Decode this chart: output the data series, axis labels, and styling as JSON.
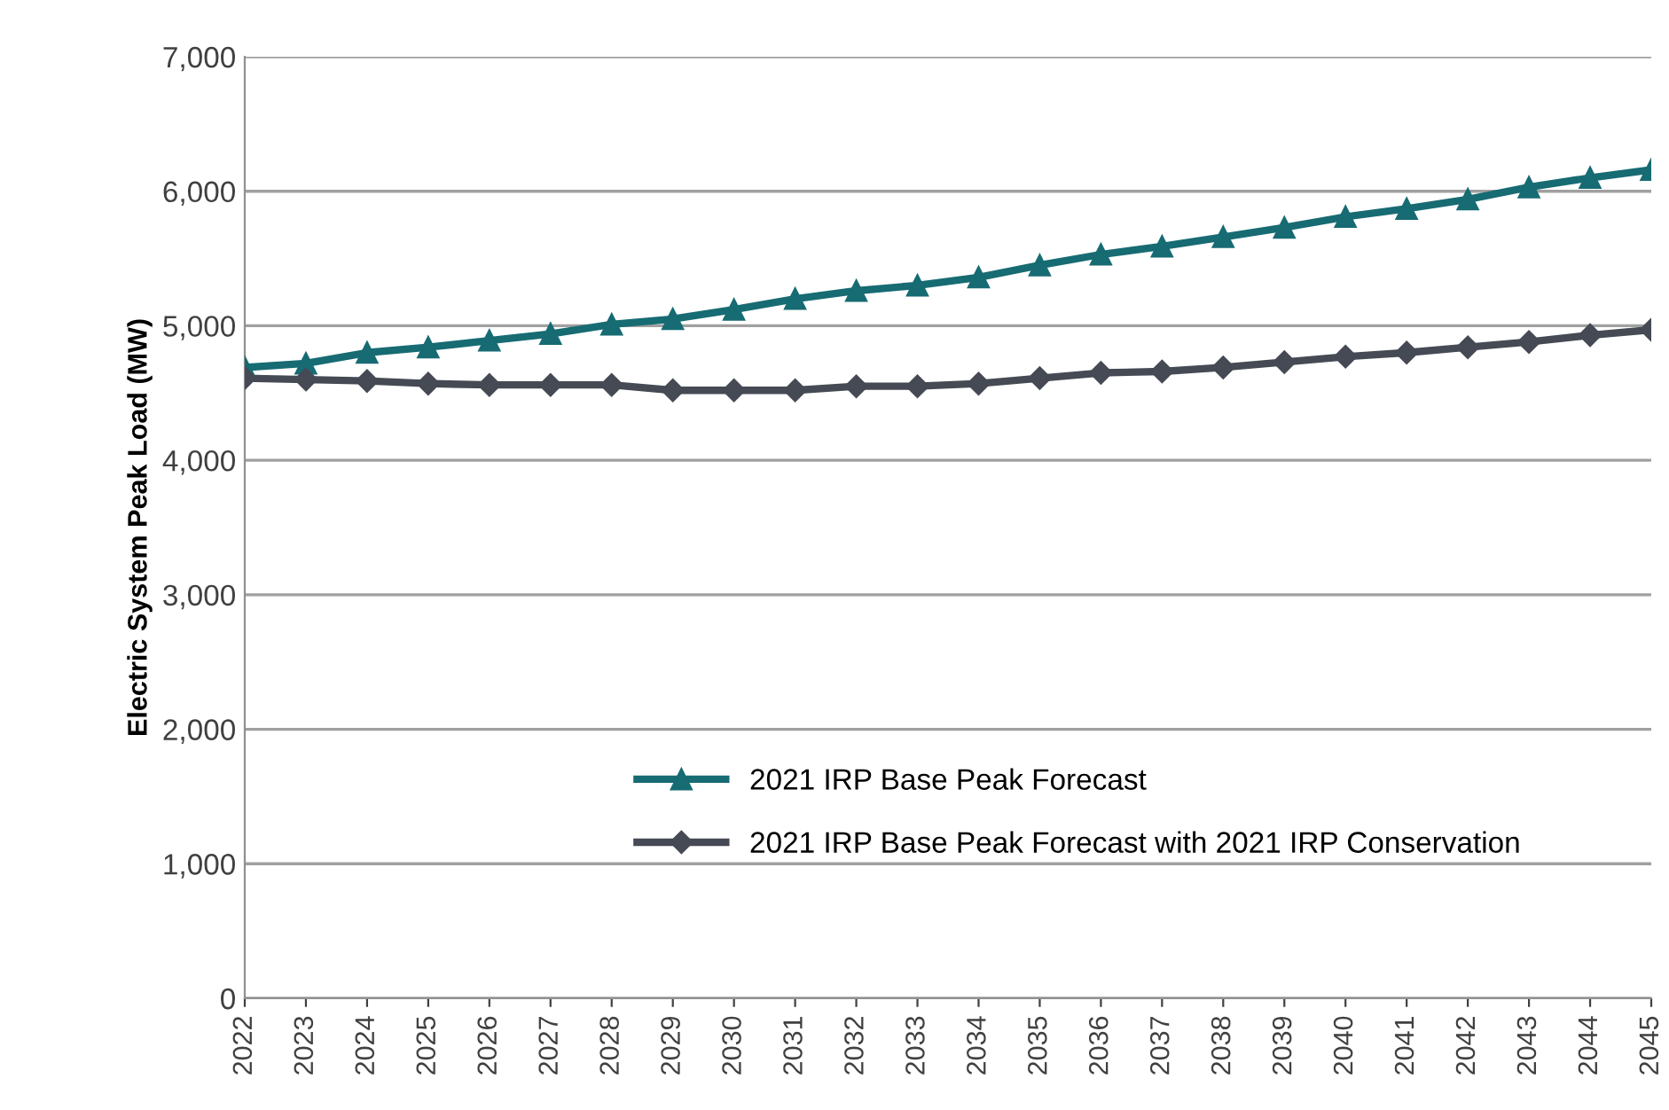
{
  "chart_data": {
    "type": "line",
    "ylabel": "Electric System Peak Load (MW)",
    "categories": [
      "2022",
      "2023",
      "2024",
      "2025",
      "2026",
      "2027",
      "2028",
      "2029",
      "2030",
      "2031",
      "2032",
      "2033",
      "2034",
      "2035",
      "2036",
      "2037",
      "2038",
      "2039",
      "2040",
      "2041",
      "2042",
      "2043",
      "2044",
      "2045"
    ],
    "series": [
      {
        "name": "2021 IRP Base Peak Forecast",
        "color": "#176b73",
        "marker": "triangle",
        "values": [
          4690,
          4720,
          4800,
          4840,
          4890,
          4940,
          5010,
          5050,
          5120,
          5200,
          5260,
          5300,
          5360,
          5450,
          5530,
          5590,
          5660,
          5730,
          5810,
          5870,
          5940,
          6030,
          6100,
          6160
        ]
      },
      {
        "name": "2021 IRP Base Peak Forecast with 2021 IRP Conservation",
        "color": "#454a54",
        "marker": "diamond",
        "values": [
          4610,
          4600,
          4590,
          4570,
          4560,
          4560,
          4560,
          4520,
          4520,
          4520,
          4550,
          4550,
          4570,
          4610,
          4650,
          4660,
          4690,
          4730,
          4770,
          4800,
          4840,
          4880,
          4930,
          4970
        ]
      }
    ],
    "ylim": [
      0,
      7000
    ],
    "yticks": [
      {
        "value": 0,
        "label": "0"
      },
      {
        "value": 1000,
        "label": "1,000"
      },
      {
        "value": 2000,
        "label": "2,000"
      },
      {
        "value": 3000,
        "label": "3,000"
      },
      {
        "value": 4000,
        "label": "4,000"
      },
      {
        "value": 5000,
        "label": "5,000"
      },
      {
        "value": 6000,
        "label": "6,000"
      },
      {
        "value": 7000,
        "label": "7,000"
      }
    ],
    "grid": "y",
    "legend": "bottom",
    "line_style": "solid"
  }
}
